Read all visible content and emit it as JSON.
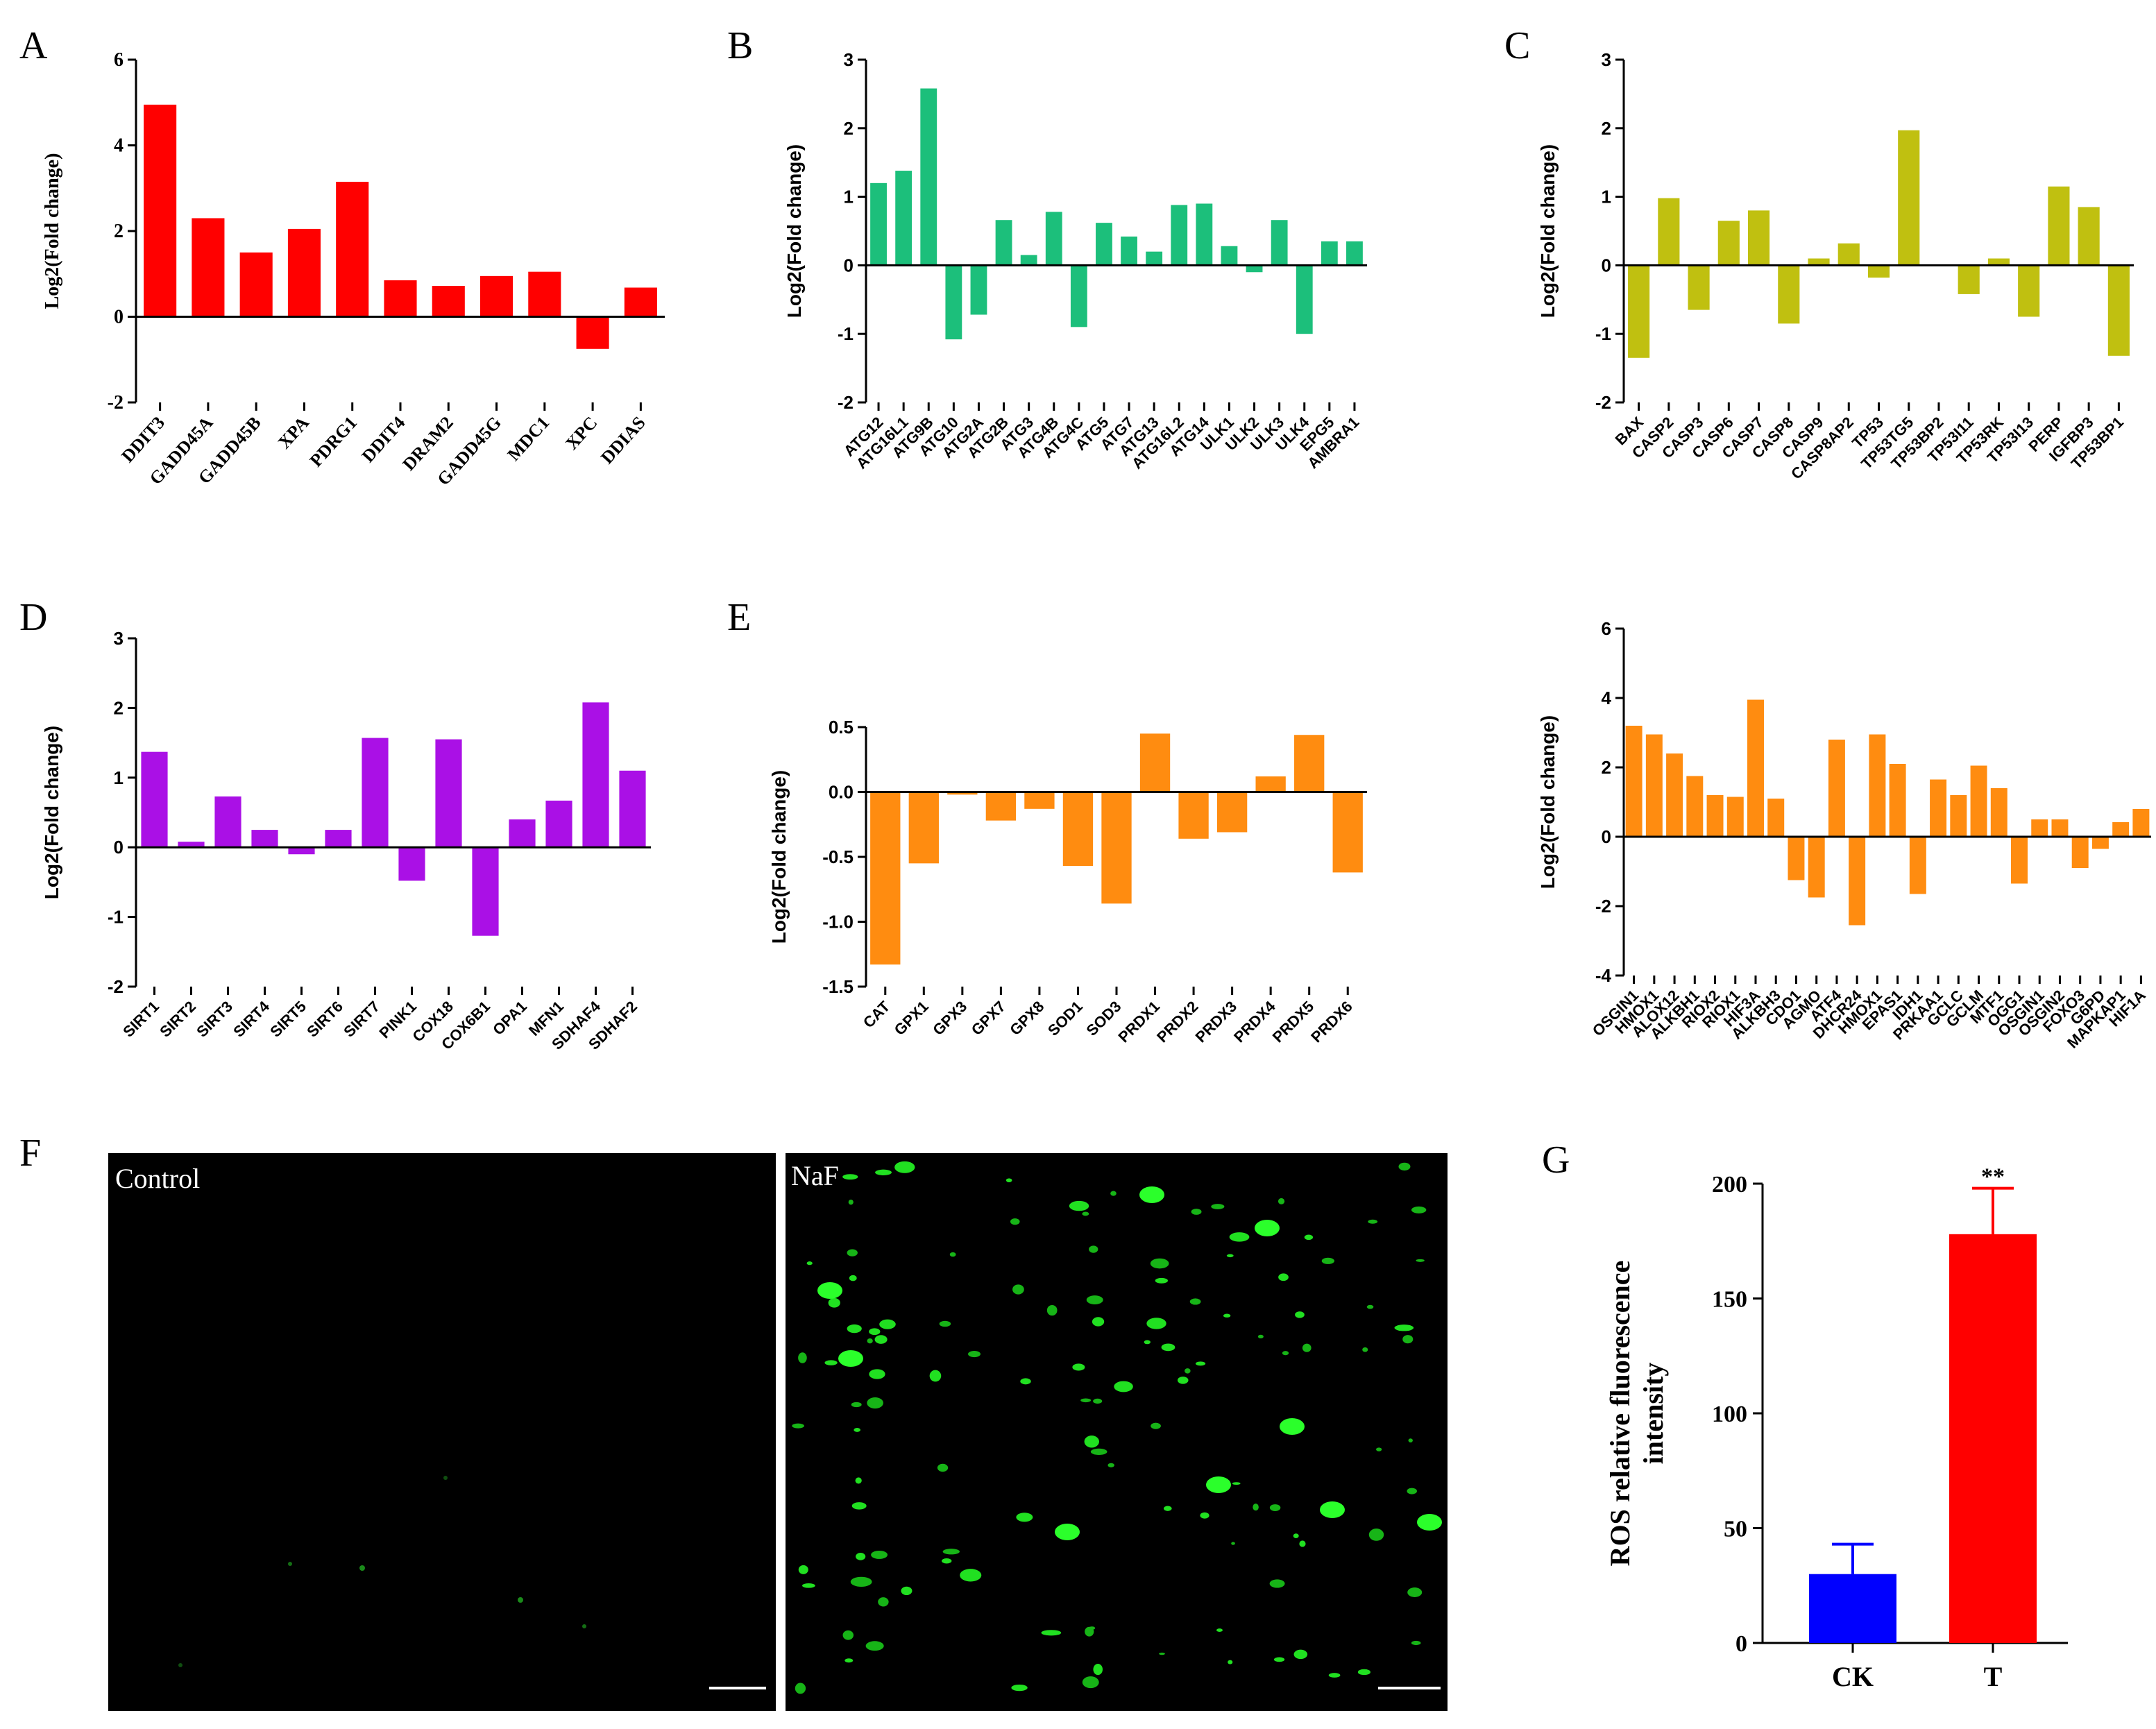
{
  "chart_data": [
    {
      "panel": "A",
      "type": "bar",
      "color": "#ff0000",
      "ylabel": "Log2(Fold change)",
      "ylim": [
        -2,
        6
      ],
      "yticks": [
        -2,
        0,
        2,
        4,
        6
      ],
      "categories": [
        "DDIT3",
        "GADD45A",
        "GADD45B",
        "XPA",
        "PDRG1",
        "DDIT4",
        "DRAM2",
        "GADD45G",
        "MDC1",
        "XPC",
        "DDIAS"
      ],
      "values": [
        4.95,
        2.3,
        1.5,
        2.05,
        3.15,
        0.85,
        0.72,
        0.95,
        1.05,
        -0.75,
        0.68
      ]
    },
    {
      "panel": "B",
      "type": "bar",
      "color": "#1cbf7b",
      "ylabel": "Log2(Fold change)",
      "ylim": [
        -2,
        3
      ],
      "yticks": [
        -2,
        -1,
        0,
        1,
        2,
        3
      ],
      "categories": [
        "ATG12",
        "ATG16L1",
        "ATG9B",
        "ATG10",
        "ATG2A",
        "ATG2B",
        "ATG3",
        "ATG4B",
        "ATG4C",
        "ATG5",
        "ATG7",
        "ATG13",
        "ATG16L2",
        "ATG14",
        "ULK1",
        "ULK2",
        "ULK3",
        "ULK4",
        "EPG5",
        "AMBRA1"
      ],
      "values": [
        1.2,
        1.38,
        2.58,
        -1.08,
        -0.72,
        0.66,
        0.15,
        0.78,
        -0.9,
        0.62,
        0.42,
        0.2,
        0.88,
        0.9,
        0.28,
        -0.1,
        0.66,
        -1.0,
        0.35,
        0.35
      ]
    },
    {
      "panel": "C",
      "type": "bar",
      "color": "#c0c010",
      "ylabel": "Log2(Fold change)",
      "ylim": [
        -2,
        3
      ],
      "yticks": [
        -2,
        -1,
        0,
        1,
        2,
        3
      ],
      "categories": [
        "BAX",
        "CASP2",
        "CASP3",
        "CASP6",
        "CASP7",
        "CASP8",
        "CASP9",
        "CASP8AP2",
        "TP53",
        "TP53TG5",
        "TP53BP2",
        "TP53I11",
        "TP53RK",
        "TP53I13",
        "PERP",
        "IGFBP3",
        "TP53BP1"
      ],
      "values": [
        -1.35,
        0.98,
        -0.65,
        0.65,
        0.8,
        -0.85,
        0.1,
        0.32,
        -0.18,
        1.97,
        0.0,
        -0.42,
        0.1,
        -0.75,
        1.15,
        0.85,
        -1.32
      ]
    },
    {
      "panel": "D",
      "type": "bar",
      "color": "#aa10e6",
      "ylabel": "Log2(Fold change)",
      "ylim": [
        -2,
        3
      ],
      "yticks": [
        -2,
        -1,
        0,
        1,
        2,
        3
      ],
      "categories": [
        "SIRT1",
        "SIRT2",
        "SIRT3",
        "SIRT4",
        "SIRT5",
        "SIRT6",
        "SIRT7",
        "PINK1",
        "COX18",
        "COX6B1",
        "OPA1",
        "MFN1",
        "SDHAF4",
        "SDHAF2"
      ],
      "values": [
        1.37,
        0.08,
        0.73,
        0.25,
        -0.1,
        0.25,
        1.57,
        -0.48,
        1.55,
        -1.27,
        0.4,
        0.67,
        2.08,
        1.1
      ]
    },
    {
      "panel": "E",
      "type": "bar",
      "color": "#ff8c10",
      "ylabel": "Log2(Fold change)",
      "ylim": [
        -1.5,
        0.5
      ],
      "yticks": [
        -1.5,
        -1.0,
        -0.5,
        0.0,
        0.5
      ],
      "yticklabels": [
        "-1.5",
        "-1.0",
        "-0.5",
        "0.0",
        "0.5"
      ],
      "categories": [
        "CAT",
        "GPX1",
        "GPX3",
        "GPX7",
        "GPX8",
        "SOD1",
        "SOD3",
        "PRDX1",
        "PRDX2",
        "PRDX3",
        "PRDX4",
        "PRDX5",
        "PRDX6"
      ],
      "values": [
        -1.33,
        -0.55,
        -0.02,
        -0.22,
        -0.13,
        -0.57,
        -0.86,
        0.45,
        -0.36,
        -0.31,
        0.12,
        0.44,
        -0.62
      ]
    },
    {
      "panel": "",
      "type": "bar",
      "color": "#ff8c10",
      "ylabel": "Log2(Fold change)",
      "ylim": [
        -4,
        6
      ],
      "yticks": [
        -4,
        -2,
        0,
        2,
        4,
        6
      ],
      "categories": [
        "OSGIN1",
        "HMOX1",
        "ALOX12",
        "ALKBH1",
        "RIOX2",
        "RIOX1",
        "HIF3A",
        "ALKBH3",
        "CDO1",
        "AGMO",
        "ATF4",
        "DHCR24",
        "HMOX1",
        "EPAS1",
        "IDH1",
        "PRKAA1",
        "GCLC",
        "GCLM",
        "MTF1",
        "OGG1",
        "OSGIN1",
        "OSGIN2",
        "FOXO3",
        "G6PD",
        "MAPKAP1",
        "HIF1A"
      ],
      "values": [
        3.2,
        2.95,
        2.4,
        1.75,
        1.2,
        1.15,
        3.95,
        1.1,
        -1.25,
        -1.75,
        2.8,
        -2.55,
        2.95,
        2.1,
        -1.65,
        1.65,
        1.2,
        2.05,
        1.4,
        -1.35,
        0.5,
        0.5,
        -0.9,
        -0.35,
        0.42,
        0.8
      ]
    },
    {
      "panel": "G",
      "type": "bar",
      "ylabel": "ROS relative fluorescence intensity",
      "ylabel_lines": [
        "ROS relative fluorescence",
        "intensity"
      ],
      "ylim": [
        0,
        200
      ],
      "yticks": [
        0,
        50,
        100,
        150,
        200
      ],
      "categories": [
        "CK",
        "T"
      ],
      "values": [
        30,
        178
      ],
      "errors": [
        13,
        20
      ],
      "colors": [
        "#0000ff",
        "#ff0000"
      ],
      "annotations": [
        {
          "category": "T",
          "text": "**"
        }
      ]
    }
  ],
  "panel_labels": {
    "A": "A",
    "B": "B",
    "C": "C",
    "D": "D",
    "E": "E",
    "F": "F",
    "G": "G"
  },
  "images": {
    "control_label": "Control",
    "naf_label": "NaF"
  }
}
